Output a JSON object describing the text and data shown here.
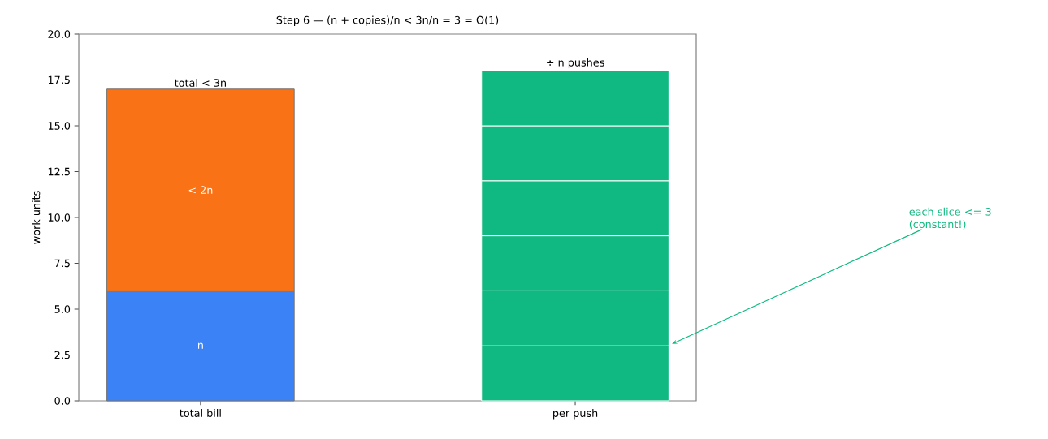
{
  "chart_data": {
    "type": "bar",
    "title": "Step 6 — (n + copies)/n  <  3n/n = 3 = O(1)",
    "ylabel": "work units",
    "categories": [
      "total bill",
      "per push"
    ],
    "stacked": true,
    "series": [
      {
        "name": "n",
        "color": "#3b82f6",
        "values": [
          6,
          null
        ]
      },
      {
        "name": "< 2n",
        "color": "#f97316",
        "values": [
          11,
          null
        ]
      },
      {
        "color": "#10b981",
        "values": [
          null,
          3
        ]
      },
      {
        "color": "#10b981",
        "values": [
          null,
          3
        ]
      },
      {
        "color": "#10b981",
        "values": [
          null,
          3
        ]
      },
      {
        "color": "#10b981",
        "values": [
          null,
          3
        ]
      },
      {
        "color": "#10b981",
        "values": [
          null,
          3
        ]
      },
      {
        "color": "#10b981",
        "values": [
          null,
          3
        ]
      }
    ],
    "totals": [
      "total < 3n",
      "÷ n pushes"
    ],
    "ylim": [
      0,
      20
    ],
    "yticks": [
      {
        "value": 0,
        "label": "0.0"
      },
      {
        "value": 2.5,
        "label": "2.5"
      },
      {
        "value": 5,
        "label": "5.0"
      },
      {
        "value": 7.5,
        "label": "7.5"
      },
      {
        "value": 10,
        "label": "10.0"
      },
      {
        "value": 12.5,
        "label": "12.5"
      },
      {
        "value": 15,
        "label": "15.0"
      },
      {
        "value": 17.5,
        "label": "17.5"
      },
      {
        "value": 20,
        "label": "20.0"
      }
    ],
    "annotations": [
      "each slice <= 3 (constant!)"
    ]
  }
}
